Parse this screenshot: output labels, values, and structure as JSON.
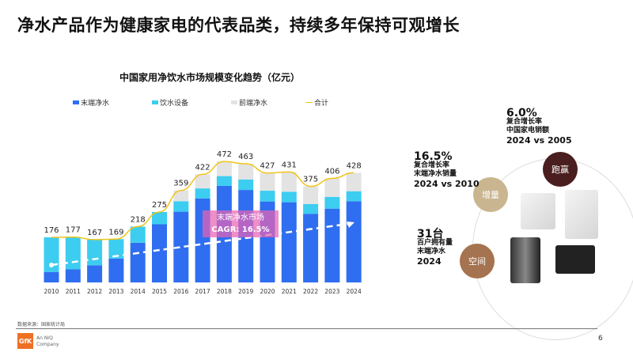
{
  "title": "净水产品作为健康家电的代表品类，持续多年保持可观增长",
  "chart_data": {
    "type": "bar",
    "title": "中国家用净饮水市场规模变化趋势（亿元）",
    "categories": [
      "2010",
      "2011",
      "2012",
      "2013",
      "2014",
      "2015",
      "2016",
      "2017",
      "2018",
      "2019",
      "2020",
      "2021",
      "2022",
      "2023",
      "2024"
    ],
    "series": [
      {
        "name": "末端净水",
        "color": "#2f6ef0",
        "values": [
          41,
          51,
          67,
          93,
          155,
          227,
          276,
          328,
          377,
          361,
          316,
          313,
          268,
          288,
          317
        ]
      },
      {
        "name": "饮水设备",
        "color": "#3ccdf0",
        "values": [
          135,
          126,
          100,
          76,
          63,
          48,
          41,
          39,
          38,
          41,
          42,
          41,
          38,
          46,
          39
        ]
      },
      {
        "name": "前端净水",
        "color": "#e3e3e3",
        "values": [
          0,
          0,
          0,
          0,
          0,
          0,
          42,
          55,
          57,
          61,
          69,
          77,
          69,
          72,
          72
        ]
      }
    ],
    "line": {
      "name": "合计",
      "color": "#f0c419",
      "values": [
        176,
        177,
        167,
        169,
        218,
        275,
        359,
        422,
        472,
        463,
        427,
        431,
        375,
        406,
        428
      ]
    },
    "annotation": {
      "line1": "末端净水市场",
      "line2": "CAGR: 16.5%"
    },
    "ylim": [
      0,
      500
    ],
    "legend": "top"
  },
  "stats": {
    "s1": {
      "value": "6.0%",
      "l1": "复合增长率",
      "l2": "中国家电销额",
      "l3": "2024 vs 2005"
    },
    "s2": {
      "value": "16.5%",
      "l1": "复合增长率",
      "l2": "末端净水销量",
      "l3": "2024 vs 2010"
    },
    "s3": {
      "value": "31台",
      "l1": "百户拥有量",
      "l2": "末端净水",
      "l3": "2024"
    }
  },
  "circles": {
    "c1": "增量",
    "c2": "跑赢",
    "c3": "空间"
  },
  "footer": {
    "source": "数据来源：国家统计局",
    "logo": "GfK",
    "logo_l1": "An NIQ",
    "logo_l2": "Company",
    "page": "6"
  }
}
